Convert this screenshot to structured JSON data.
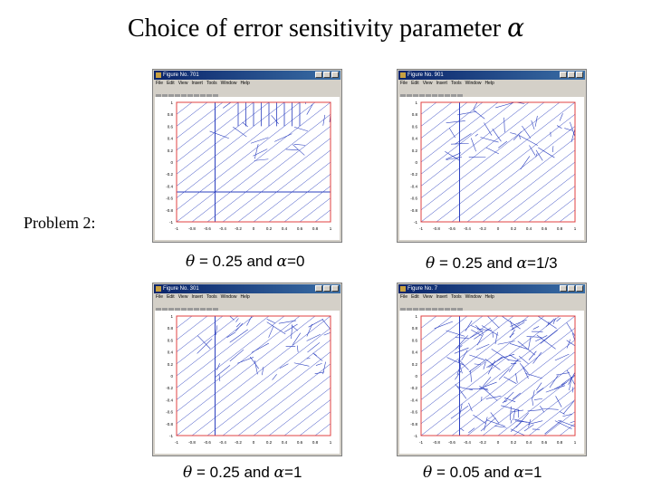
{
  "title": {
    "text": "Choice of error sensitivity parameter",
    "symbol": "α"
  },
  "side_label": "Problem 2:",
  "window_menu": [
    "File",
    "Edit",
    "View",
    "Insert",
    "Tools",
    "Window",
    "Help"
  ],
  "axis_ticks": {
    "y": [
      "1",
      "0.8",
      "0.6",
      "0.4",
      "0.2",
      "0",
      "-0.2",
      "-0.4",
      "-0.6",
      "-0.8",
      "-1"
    ],
    "x": [
      "-1",
      "-0.8",
      "-0.6",
      "-0.4",
      "-0.2",
      "0",
      "0.2",
      "0.4",
      "0.6",
      "0.8",
      "1"
    ]
  },
  "colors": {
    "mesh": "#2b3fbf",
    "boundary": "#e04040",
    "window_bg": "#d4d0c8"
  },
  "panels": [
    {
      "window_title": "Figure No. 701",
      "theta_sym": "θ",
      "theta_text": "= 0.25 and",
      "alpha_sym": "α",
      "alpha_text": "=0"
    },
    {
      "window_title": "Figure No. 901",
      "theta_sym": "θ",
      "theta_text": "= 0.25 and",
      "alpha_sym": "α",
      "alpha_text": "=1/3"
    },
    {
      "window_title": "Figure No. 301",
      "theta_sym": "θ",
      "theta_text": "= 0.25 and",
      "alpha_sym": "α",
      "alpha_text": "=1"
    },
    {
      "window_title": "Figure No. 7",
      "theta_sym": "θ",
      "theta_text": "= 0.05 and",
      "alpha_sym": "α",
      "alpha_text": "=1"
    }
  ]
}
